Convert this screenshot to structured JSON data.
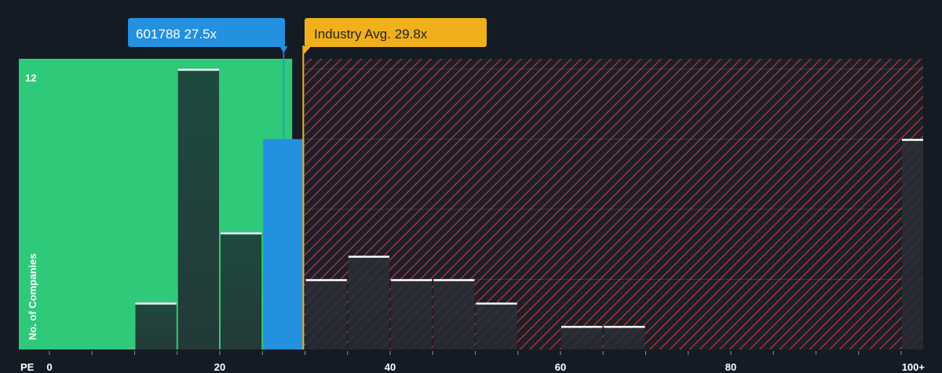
{
  "chart_data": {
    "type": "bar",
    "x_axis_label": "PE",
    "y_axis_label": "No. of Companies",
    "x_ticks": [
      "0",
      "20",
      "40",
      "60",
      "80",
      "100+"
    ],
    "y_ticks": [
      12
    ],
    "ylim": [
      0,
      12
    ],
    "bin_width": 5,
    "bins": [
      {
        "start": 10,
        "end": 15,
        "count": 2
      },
      {
        "start": 15,
        "end": 20,
        "count": 12
      },
      {
        "start": 20,
        "end": 25,
        "count": 5
      },
      {
        "start": 25,
        "end": 30,
        "count": 9,
        "highlight": true
      },
      {
        "start": 30,
        "end": 35,
        "count": 3
      },
      {
        "start": 35,
        "end": 40,
        "count": 4
      },
      {
        "start": 40,
        "end": 45,
        "count": 3
      },
      {
        "start": 45,
        "end": 50,
        "count": 3
      },
      {
        "start": 50,
        "end": 55,
        "count": 2
      },
      {
        "start": 60,
        "end": 65,
        "count": 1
      },
      {
        "start": 65,
        "end": 70,
        "count": 1
      },
      {
        "start": 100,
        "end": 105,
        "count": 9,
        "label": "100+"
      }
    ],
    "company": {
      "label": "601788 27.5x",
      "pe": 27.5
    },
    "industry_avg": {
      "label": "Industry Avg. 29.8x",
      "pe": 29.8
    }
  },
  "colors": {
    "background": "#151b24",
    "undervalued_zone": "#2fc97a",
    "overvalued_hatch": "#c8353f",
    "company_bar": "#2490e0",
    "industry_line": "#f0b01c",
    "bar_fill_top": "#1e4a3e",
    "bar_cap": "#ffffff"
  }
}
